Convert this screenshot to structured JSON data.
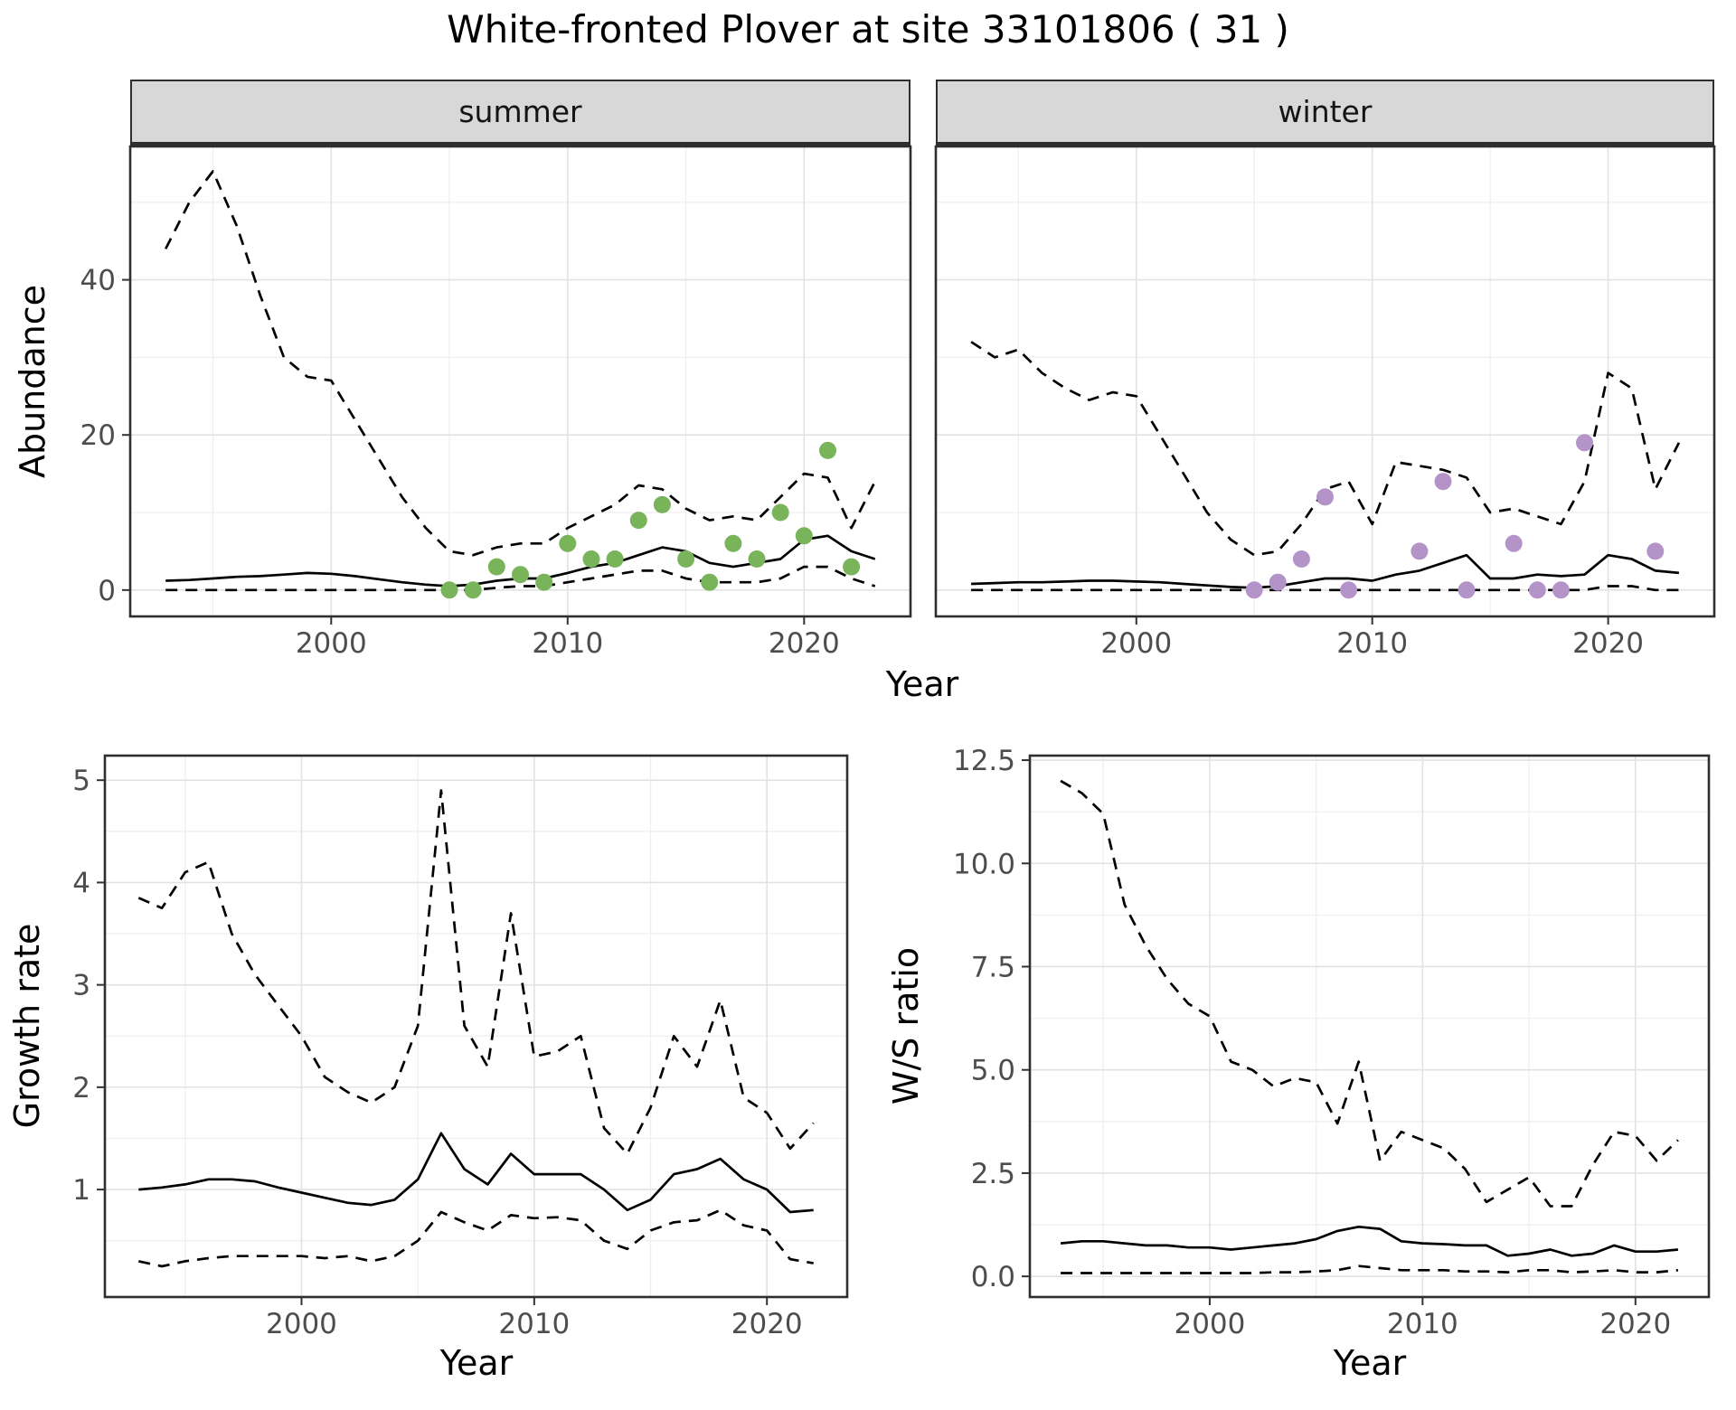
{
  "title": "White-fronted Plover at site 33101806 ( 31 )",
  "axis_labels": {
    "abundance_y": "Abundance",
    "top_x": "Year",
    "growth_y": "Growth rate",
    "growth_x": "Year",
    "ws_y": "W/S ratio",
    "ws_x": "Year"
  },
  "colors": {
    "summer_points": "#79b35a",
    "winter_points": "#b393c8",
    "line": "#000000",
    "strip_bg": "#d8d8d8",
    "grid_major": "#e2e2e2",
    "grid_minor": "#efefef",
    "panel_border": "#2e2e2e",
    "tick_text": "#4d4d4d"
  },
  "chart_data": [
    {
      "id": "abundance-summer",
      "type": "line",
      "facet_label": "summer",
      "xlabel": "Year",
      "ylabel": "Abundance",
      "xlim": [
        1991.5,
        2024.5
      ],
      "ylim": [
        -3.4,
        57.2
      ],
      "xticks": [
        {
          "v": 2000,
          "label": "2000"
        },
        {
          "v": 2010,
          "label": "2010"
        },
        {
          "v": 2020,
          "label": "2020"
        }
      ],
      "yticks": [
        {
          "v": 0,
          "label": "0"
        },
        {
          "v": 20,
          "label": "20"
        },
        {
          "v": 40,
          "label": "40"
        }
      ],
      "xminor": [
        1995,
        2005,
        2015
      ],
      "yminor": [
        10,
        30,
        50
      ],
      "show_x_labels": true,
      "show_y_labels": true,
      "x": [
        1993,
        1994,
        1995,
        1996,
        1997,
        1998,
        1999,
        2000,
        2001,
        2002,
        2003,
        2004,
        2005,
        2006,
        2007,
        2008,
        2009,
        2010,
        2011,
        2012,
        2013,
        2014,
        2015,
        2016,
        2017,
        2018,
        2019,
        2020,
        2021,
        2022,
        2023
      ],
      "series": [
        {
          "name": "upper-ci",
          "style": "dashed",
          "values": [
            44,
            50,
            54,
            47,
            38,
            30,
            27.5,
            27,
            22,
            17,
            12,
            8,
            5,
            4.5,
            5.5,
            6,
            6,
            8,
            9.5,
            11,
            13.5,
            13,
            10.5,
            9,
            9.5,
            9,
            12,
            15,
            14.5,
            8,
            14
          ]
        },
        {
          "name": "median",
          "style": "solid",
          "values": [
            1.2,
            1.3,
            1.5,
            1.7,
            1.8,
            2.0,
            2.2,
            2.1,
            1.8,
            1.4,
            1.0,
            0.7,
            0.5,
            0.7,
            1.2,
            1.5,
            1.5,
            2.2,
            3.0,
            3.5,
            4.5,
            5.5,
            5.0,
            3.5,
            3.0,
            3.5,
            4.0,
            6.5,
            7.0,
            5.0,
            4.0
          ]
        },
        {
          "name": "lower-ci",
          "style": "dashed",
          "values": [
            0,
            0,
            0,
            0,
            0,
            0,
            0,
            0,
            0,
            0,
            0,
            0,
            0,
            0,
            0.3,
            0.5,
            0.5,
            1.0,
            1.5,
            2.0,
            2.5,
            2.5,
            1.5,
            1.0,
            1.0,
            1.0,
            1.5,
            3.0,
            3.0,
            1.5,
            0.5
          ]
        }
      ],
      "points": {
        "name": "summer-count",
        "color": "#79b35a",
        "xy": [
          [
            2005,
            0
          ],
          [
            2006,
            0
          ],
          [
            2007,
            3
          ],
          [
            2008,
            2
          ],
          [
            2009,
            1
          ],
          [
            2010,
            6
          ],
          [
            2011,
            4
          ],
          [
            2012,
            4
          ],
          [
            2013,
            9
          ],
          [
            2014,
            11
          ],
          [
            2015,
            4
          ],
          [
            2016,
            1
          ],
          [
            2017,
            6
          ],
          [
            2018,
            4
          ],
          [
            2019,
            10
          ],
          [
            2020,
            7
          ],
          [
            2021,
            18
          ],
          [
            2022,
            3
          ]
        ]
      }
    },
    {
      "id": "abundance-winter",
      "type": "line",
      "facet_label": "winter",
      "xlabel": "Year",
      "ylabel": "Abundance",
      "xlim": [
        1991.5,
        2024.5
      ],
      "ylim": [
        -3.4,
        57.2
      ],
      "xticks": [
        {
          "v": 2000,
          "label": "2000"
        },
        {
          "v": 2010,
          "label": "2010"
        },
        {
          "v": 2020,
          "label": "2020"
        }
      ],
      "yticks": [
        {
          "v": 0,
          "label": "0"
        },
        {
          "v": 20,
          "label": "20"
        },
        {
          "v": 40,
          "label": "40"
        }
      ],
      "xminor": [
        1995,
        2005,
        2015
      ],
      "yminor": [
        10,
        30,
        50
      ],
      "show_x_labels": true,
      "show_y_labels": false,
      "x": [
        1993,
        1994,
        1995,
        1996,
        1997,
        1998,
        1999,
        2000,
        2001,
        2002,
        2003,
        2004,
        2005,
        2006,
        2007,
        2008,
        2009,
        2010,
        2011,
        2012,
        2013,
        2014,
        2015,
        2016,
        2017,
        2018,
        2019,
        2020,
        2021,
        2022,
        2023
      ],
      "series": [
        {
          "name": "upper-ci",
          "style": "dashed",
          "values": [
            32,
            30,
            31,
            28,
            26,
            24.5,
            25.5,
            25,
            20,
            15,
            10,
            6.5,
            4.5,
            5,
            8.5,
            13,
            14,
            8.5,
            16.5,
            16,
            15.5,
            14.5,
            10,
            10.5,
            9.5,
            8.5,
            14,
            28,
            26,
            13,
            19
          ]
        },
        {
          "name": "median",
          "style": "solid",
          "values": [
            0.8,
            0.9,
            1.0,
            1.0,
            1.1,
            1.2,
            1.2,
            1.1,
            1.0,
            0.8,
            0.6,
            0.4,
            0.3,
            0.5,
            1.0,
            1.5,
            1.5,
            1.2,
            2.0,
            2.5,
            3.5,
            4.5,
            1.5,
            1.5,
            2.0,
            1.8,
            2.0,
            4.5,
            4.0,
            2.5,
            2.2
          ]
        },
        {
          "name": "lower-ci",
          "style": "dashed",
          "values": [
            0,
            0,
            0,
            0,
            0,
            0,
            0,
            0,
            0,
            0,
            0,
            0,
            0,
            0,
            0,
            0,
            0,
            0,
            0,
            0,
            0,
            0,
            0,
            0,
            0,
            0,
            0,
            0.5,
            0.5,
            0,
            0
          ]
        }
      ],
      "points": {
        "name": "winter-count",
        "color": "#b393c8",
        "xy": [
          [
            2005,
            0
          ],
          [
            2006,
            1
          ],
          [
            2007,
            4
          ],
          [
            2008,
            12
          ],
          [
            2009,
            0
          ],
          [
            2012,
            5
          ],
          [
            2013,
            14
          ],
          [
            2014,
            0
          ],
          [
            2016,
            6
          ],
          [
            2017,
            0
          ],
          [
            2018,
            0
          ],
          [
            2019,
            19
          ],
          [
            2022,
            5
          ]
        ]
      }
    },
    {
      "id": "growth-rate",
      "type": "line",
      "facet_label": "",
      "xlabel": "Year",
      "ylabel": "Growth rate",
      "xlim": [
        1991.55,
        2023.45
      ],
      "ylim": [
        -0.05,
        5.24
      ],
      "xticks": [
        {
          "v": 2000,
          "label": "2000"
        },
        {
          "v": 2010,
          "label": "2010"
        },
        {
          "v": 2020,
          "label": "2020"
        }
      ],
      "yticks": [
        {
          "v": 1,
          "label": "1"
        },
        {
          "v": 2,
          "label": "2"
        },
        {
          "v": 3,
          "label": "3"
        },
        {
          "v": 4,
          "label": "4"
        },
        {
          "v": 5,
          "label": "5"
        }
      ],
      "xminor": [
        1995,
        2005,
        2015
      ],
      "yminor": [
        0.5,
        1.5,
        2.5,
        3.5,
        4.5
      ],
      "show_x_labels": true,
      "show_y_labels": true,
      "x": [
        1993,
        1994,
        1995,
        1996,
        1997,
        1998,
        1999,
        2000,
        2001,
        2002,
        2003,
        2004,
        2005,
        2006,
        2007,
        2008,
        2009,
        2010,
        2011,
        2012,
        2013,
        2014,
        2015,
        2016,
        2017,
        2018,
        2019,
        2020,
        2021,
        2022
      ],
      "series": [
        {
          "name": "upper-ci",
          "style": "dashed",
          "values": [
            3.85,
            3.75,
            4.1,
            4.2,
            3.5,
            3.1,
            2.8,
            2.5,
            2.1,
            1.95,
            1.85,
            2.0,
            2.6,
            4.9,
            2.6,
            2.2,
            3.7,
            2.3,
            2.35,
            2.5,
            1.6,
            1.35,
            1.8,
            2.5,
            2.2,
            2.85,
            1.9,
            1.75,
            1.4,
            1.65
          ]
        },
        {
          "name": "median",
          "style": "solid",
          "values": [
            1.0,
            1.02,
            1.05,
            1.1,
            1.1,
            1.08,
            1.02,
            0.97,
            0.92,
            0.87,
            0.85,
            0.9,
            1.1,
            1.55,
            1.2,
            1.05,
            1.35,
            1.15,
            1.15,
            1.15,
            1.0,
            0.8,
            0.9,
            1.15,
            1.2,
            1.3,
            1.1,
            1.0,
            0.78,
            0.8
          ]
        },
        {
          "name": "lower-ci",
          "style": "dashed",
          "values": [
            0.3,
            0.25,
            0.3,
            0.33,
            0.35,
            0.35,
            0.35,
            0.35,
            0.33,
            0.35,
            0.3,
            0.35,
            0.5,
            0.78,
            0.68,
            0.6,
            0.75,
            0.72,
            0.73,
            0.7,
            0.5,
            0.42,
            0.6,
            0.68,
            0.7,
            0.8,
            0.65,
            0.6,
            0.32,
            0.28
          ]
        }
      ],
      "points": null
    },
    {
      "id": "ws-ratio",
      "type": "line",
      "facet_label": "",
      "xlabel": "Year",
      "ylabel": "W/S ratio",
      "xlim": [
        1991.55,
        2023.45
      ],
      "ylim": [
        -0.5,
        12.61
      ],
      "xticks": [
        {
          "v": 2000,
          "label": "2000"
        },
        {
          "v": 2010,
          "label": "2010"
        },
        {
          "v": 2020,
          "label": "2020"
        }
      ],
      "yticks": [
        {
          "v": 0,
          "label": "0.0"
        },
        {
          "v": 2.5,
          "label": "2.5"
        },
        {
          "v": 5,
          "label": "5.0"
        },
        {
          "v": 7.5,
          "label": "7.5"
        },
        {
          "v": 10,
          "label": "10.0"
        },
        {
          "v": 12.5,
          "label": "12.5"
        }
      ],
      "xminor": [
        1995,
        2005,
        2015
      ],
      "yminor": [
        1.25,
        3.75,
        6.25,
        8.75,
        11.25
      ],
      "show_x_labels": true,
      "show_y_labels": true,
      "x": [
        1993,
        1994,
        1995,
        1996,
        1997,
        1998,
        1999,
        2000,
        2001,
        2002,
        2003,
        2004,
        2005,
        2006,
        2007,
        2008,
        2009,
        2010,
        2011,
        2012,
        2013,
        2014,
        2015,
        2016,
        2017,
        2018,
        2019,
        2020,
        2021,
        2022
      ],
      "series": [
        {
          "name": "upper-ci",
          "style": "dashed",
          "values": [
            12.0,
            11.7,
            11.2,
            9.0,
            8.0,
            7.2,
            6.6,
            6.3,
            5.2,
            5.0,
            4.6,
            4.8,
            4.7,
            3.7,
            5.2,
            2.8,
            3.5,
            3.3,
            3.1,
            2.6,
            1.8,
            2.1,
            2.4,
            1.7,
            1.7,
            2.7,
            3.5,
            3.4,
            2.8,
            3.3
          ]
        },
        {
          "name": "median",
          "style": "solid",
          "values": [
            0.8,
            0.85,
            0.85,
            0.8,
            0.75,
            0.75,
            0.7,
            0.7,
            0.65,
            0.7,
            0.75,
            0.8,
            0.9,
            1.1,
            1.2,
            1.15,
            0.85,
            0.8,
            0.78,
            0.75,
            0.75,
            0.5,
            0.55,
            0.65,
            0.5,
            0.55,
            0.75,
            0.6,
            0.6,
            0.65
          ]
        },
        {
          "name": "lower-ci",
          "style": "dashed",
          "values": [
            0.08,
            0.08,
            0.08,
            0.08,
            0.08,
            0.08,
            0.08,
            0.08,
            0.08,
            0.08,
            0.1,
            0.1,
            0.12,
            0.15,
            0.25,
            0.2,
            0.15,
            0.15,
            0.15,
            0.12,
            0.12,
            0.1,
            0.15,
            0.15,
            0.1,
            0.12,
            0.15,
            0.1,
            0.1,
            0.15
          ]
        }
      ],
      "points": null
    }
  ]
}
